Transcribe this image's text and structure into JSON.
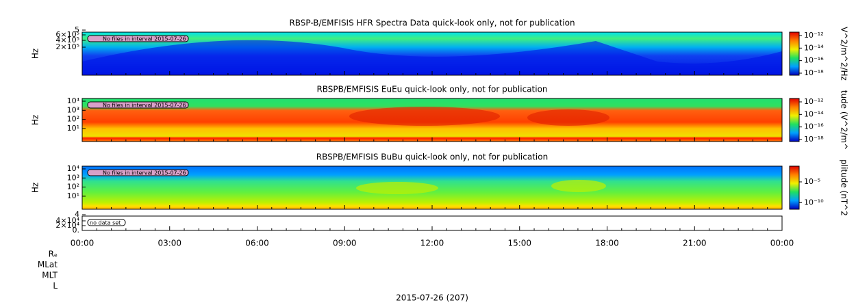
{
  "panels": [
    {
      "title": "RBSP-B/EMFISIS  HFR Spectra Data quick-look only, not for publication",
      "ylabel": "Hz",
      "yticks": [
        "5",
        "6×10⁵",
        "4×10⁵",
        "2×10⁵"
      ],
      "note": "No files in interval 2015-07-26",
      "colorbar_label": "V^2/m^2/Hz",
      "colorbar_ticks": [
        "10⁻¹²",
        "10⁻¹⁴",
        "10⁻¹⁶",
        "10⁻¹⁸"
      ]
    },
    {
      "title": "RBSPB/EMFISIS  EuEu quick-look only, not for publication",
      "ylabel": "Hz",
      "yticks": [
        "10⁴",
        "10³",
        "10²",
        "10¹"
      ],
      "note": "No files in interval 2015-07-26",
      "colorbar_label": "tude (V^2/m^",
      "colorbar_ticks": [
        "10⁻¹²",
        "10⁻¹⁴",
        "10⁻¹⁶",
        "10⁻¹⁸"
      ]
    },
    {
      "title": "RBSPB/EMFISIS  BuBu quick-look only, not for publication",
      "ylabel": "Hz",
      "yticks": [
        "10⁴",
        "10³",
        "10²",
        "10¹"
      ],
      "note": "No files in interval 2015-07-26",
      "colorbar_label": "plitude (nT^2",
      "colorbar_ticks": [
        "10⁻⁵",
        "10⁻¹⁰"
      ]
    },
    {
      "yticks": [
        "4",
        "4×10⁴",
        "2×10⁴",
        "0."
      ],
      "note": "no data set"
    }
  ],
  "xticks": [
    "00:00",
    "03:00",
    "06:00",
    "09:00",
    "12:00",
    "15:00",
    "18:00",
    "21:00",
    "00:00"
  ],
  "ephemeris_labels": [
    "Rₑ",
    "MLat",
    "MLT",
    "L"
  ],
  "xlabel": "2015-07-26 (207)"
}
